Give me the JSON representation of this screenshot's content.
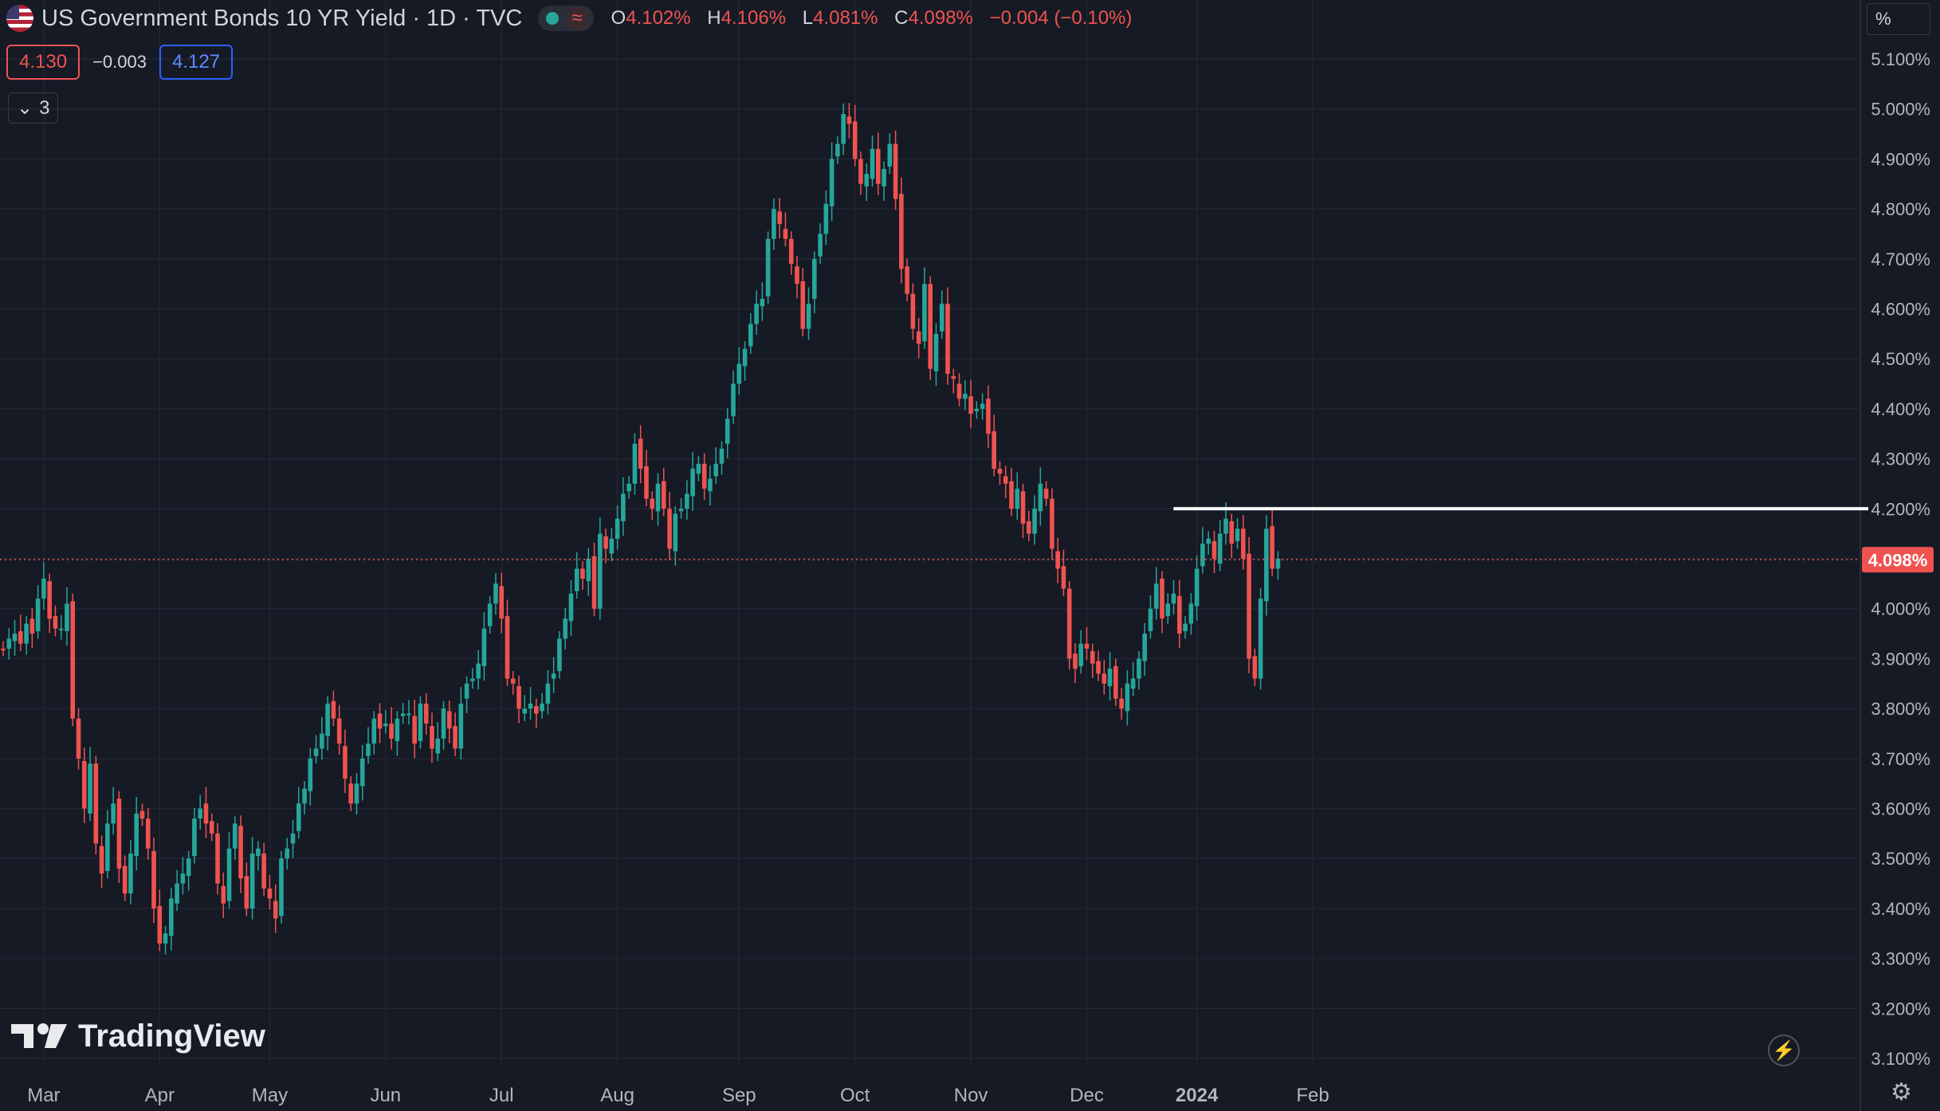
{
  "header": {
    "title": "US Government Bonds 10 YR Yield · 1D · TVC",
    "o_label": "O",
    "o_value": "4.102%",
    "h_label": "H",
    "h_value": "4.106%",
    "l_label": "L",
    "l_value": "4.081%",
    "c_label": "C",
    "c_value": "4.098%",
    "change": "−0.004 (−0.10%)",
    "waves_icon": "≈"
  },
  "trade": {
    "sell": "4.130",
    "spread": "−0.003",
    "buy": "4.127"
  },
  "indicators": {
    "collapse_icon": "chevron-down-icon",
    "count": "3"
  },
  "axis_unit": "%",
  "watermark": "TradingView",
  "colors": {
    "up": "#26a69a",
    "down": "#ef5350",
    "bg": "#161a25",
    "grid": "#232632",
    "price_line": "#ef5350",
    "level": "#ffffff"
  },
  "chart_data": {
    "type": "candlestick",
    "title": "US Government Bonds 10 YR Yield · 1D · TVC",
    "y_unit": "%",
    "ylim": [
      3.06,
      5.15
    ],
    "yticks": [
      "5.100%",
      "5.000%",
      "4.900%",
      "4.800%",
      "4.700%",
      "4.600%",
      "4.500%",
      "4.400%",
      "4.300%",
      "4.200%",
      "4.100%",
      "4.000%",
      "3.900%",
      "3.800%",
      "3.700%",
      "3.600%",
      "3.500%",
      "3.400%",
      "3.300%",
      "3.200%",
      "3.100%"
    ],
    "x_labels": [
      "Mar",
      "Apr",
      "May",
      "Jun",
      "Jul",
      "Aug",
      "Sep",
      "Oct",
      "Nov",
      "Dec",
      "2024",
      "Feb"
    ],
    "x_label_index": [
      7,
      27,
      46,
      66,
      86,
      106,
      127,
      147,
      167,
      187,
      206,
      226
    ],
    "last_price": "4.098%",
    "last_value": 4.098,
    "horizontal_line_level": 4.2,
    "horizontal_line_start_index": 205,
    "close": [
      3.92,
      3.94,
      3.95,
      3.93,
      3.97,
      3.95,
      4.02,
      4.06,
      3.98,
      3.96,
      3.96,
      4.01,
      3.78,
      3.7,
      3.6,
      3.69,
      3.53,
      3.47,
      3.57,
      3.61,
      3.48,
      3.43,
      3.51,
      3.59,
      3.58,
      3.52,
      3.4,
      3.33,
      3.35,
      3.42,
      3.45,
      3.47,
      3.5,
      3.58,
      3.6,
      3.57,
      3.55,
      3.45,
      3.41,
      3.52,
      3.57,
      3.46,
      3.4,
      3.51,
      3.52,
      3.44,
      3.42,
      3.38,
      3.5,
      3.52,
      3.55,
      3.61,
      3.64,
      3.7,
      3.72,
      3.75,
      3.81,
      3.78,
      3.73,
      3.66,
      3.61,
      3.65,
      3.7,
      3.73,
      3.78,
      3.76,
      3.77,
      3.74,
      3.78,
      3.79,
      3.79,
      3.73,
      3.81,
      3.77,
      3.72,
      3.74,
      3.8,
      3.76,
      3.72,
      3.81,
      3.85,
      3.86,
      3.89,
      3.96,
      4.01,
      4.05,
      3.98,
      3.86,
      3.85,
      3.8,
      3.8,
      3.81,
      3.79,
      3.81,
      3.85,
      3.87,
      3.94,
      3.98,
      4.03,
      4.08,
      4.06,
      4.1,
      4.0,
      4.15,
      4.12,
      4.14,
      4.18,
      4.23,
      4.25,
      4.33,
      4.28,
      4.22,
      4.2,
      4.25,
      4.2,
      4.12,
      4.19,
      4.2,
      4.23,
      4.28,
      4.29,
      4.24,
      4.26,
      4.29,
      4.32,
      4.38,
      4.45,
      4.49,
      4.52,
      4.57,
      4.61,
      4.62,
      4.74,
      4.8,
      4.77,
      4.74,
      4.69,
      4.65,
      4.56,
      4.61,
      4.7,
      4.75,
      4.81,
      4.9,
      4.93,
      4.99,
      4.97,
      4.9,
      4.85,
      4.87,
      4.92,
      4.85,
      4.88,
      4.93,
      4.82,
      4.68,
      4.63,
      4.56,
      4.53,
      4.65,
      4.48,
      4.55,
      4.61,
      4.47,
      4.46,
      4.42,
      4.43,
      4.39,
      4.4,
      4.41,
      4.35,
      4.28,
      4.27,
      4.25,
      4.2,
      4.24,
      4.17,
      4.15,
      4.2,
      4.25,
      4.22,
      4.12,
      4.08,
      4.04,
      3.9,
      3.88,
      3.93,
      3.92,
      3.89,
      3.87,
      3.85,
      3.88,
      3.82,
      3.8,
      3.85,
      3.86,
      3.9,
      3.95,
      4.0,
      4.05,
      3.98,
      4.01,
      4.03,
      3.95,
      3.97,
      4.01,
      4.08,
      4.13,
      4.14,
      4.1,
      4.15,
      4.18,
      4.13,
      4.16,
      4.1,
      3.9,
      3.86,
      4.02,
      4.16,
      4.08,
      4.1
    ],
    "open_seed": 3.93
  }
}
